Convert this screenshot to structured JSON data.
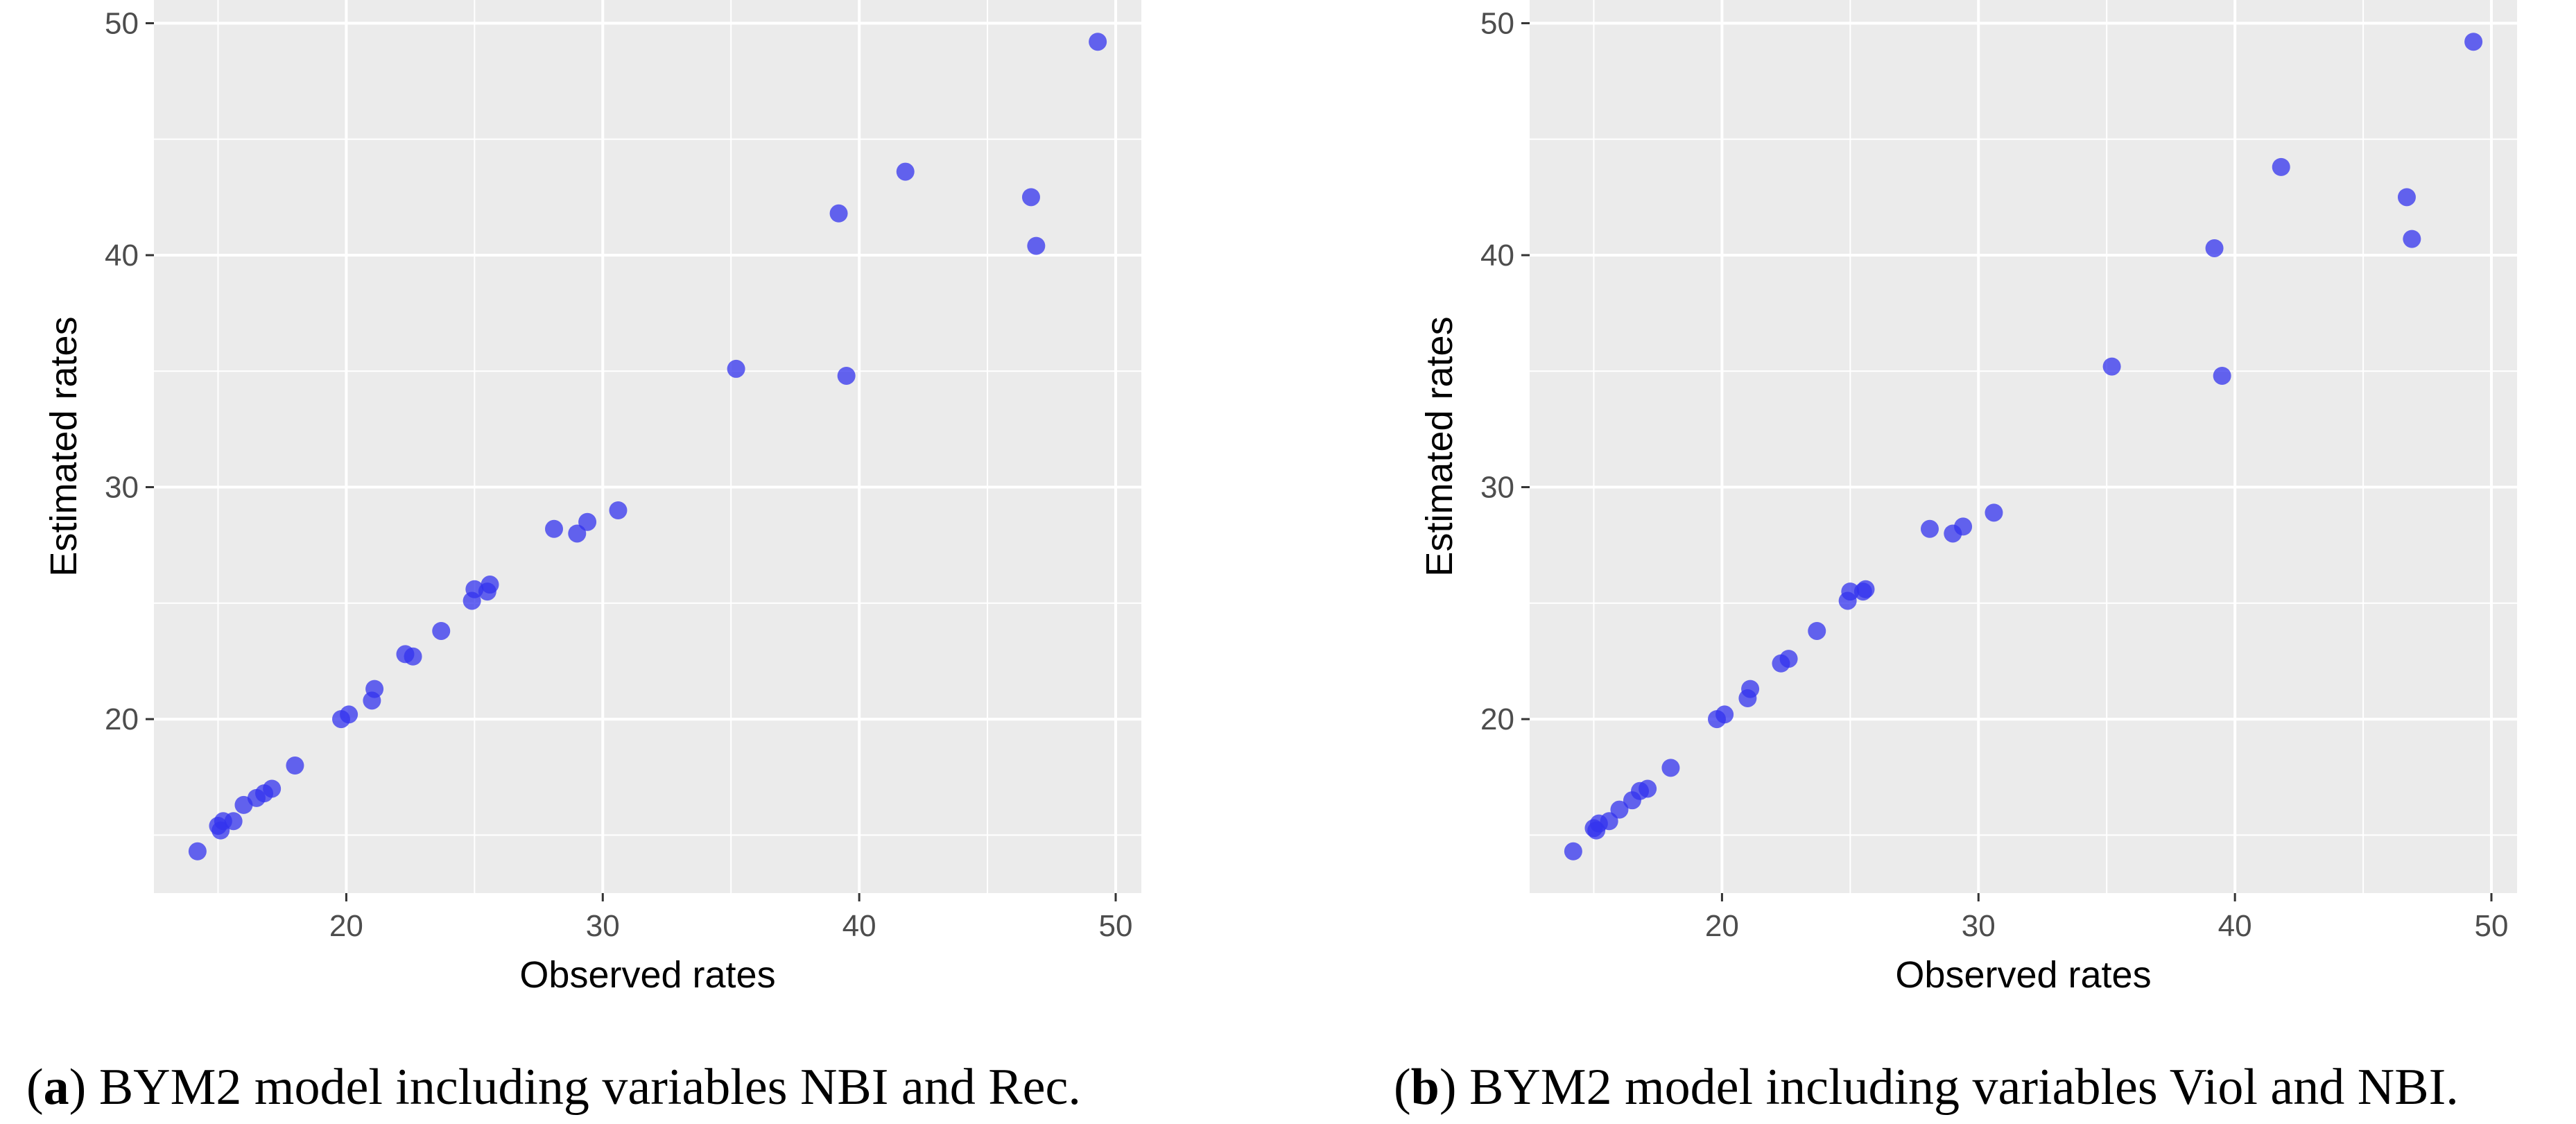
{
  "figure": {
    "panels": [
      {
        "caption": {
          "letter": "a",
          "text": " BYM2 model including variables NBI and Rec."
        }
      },
      {
        "caption": {
          "letter": "b",
          "text": " BYM2 model including variables Viol and NBI."
        }
      }
    ]
  },
  "chart_data": [
    {
      "type": "scatter",
      "title": "",
      "xlabel": "Observed rates",
      "ylabel": "Estimated rates",
      "xlim": [
        12.5,
        51.0
      ],
      "ylim": [
        12.5,
        51.0
      ],
      "xticks": [
        20,
        30,
        40,
        50
      ],
      "yticks": [
        20,
        30,
        40,
        50
      ],
      "grid": true,
      "point_color": "#3333ee",
      "series": [
        {
          "name": "NBI and Rec.",
          "points": [
            [
              14.2,
              14.3
            ],
            [
              15.0,
              15.4
            ],
            [
              15.2,
              15.6
            ],
            [
              15.1,
              15.2
            ],
            [
              15.6,
              15.6
            ],
            [
              16.0,
              16.3
            ],
            [
              16.5,
              16.6
            ],
            [
              16.8,
              16.8
            ],
            [
              17.1,
              17.0
            ],
            [
              18.0,
              18.0
            ],
            [
              19.8,
              20.0
            ],
            [
              20.1,
              20.2
            ],
            [
              21.0,
              20.8
            ],
            [
              21.1,
              21.3
            ],
            [
              22.3,
              22.8
            ],
            [
              22.6,
              22.7
            ],
            [
              23.7,
              23.8
            ],
            [
              24.9,
              25.1
            ],
            [
              25.0,
              25.6
            ],
            [
              25.5,
              25.5
            ],
            [
              25.6,
              25.8
            ],
            [
              28.1,
              28.2
            ],
            [
              29.0,
              28.0
            ],
            [
              29.4,
              28.5
            ],
            [
              30.6,
              29.0
            ],
            [
              35.2,
              35.1
            ],
            [
              39.2,
              41.8
            ],
            [
              39.5,
              34.8
            ],
            [
              41.8,
              43.6
            ],
            [
              46.7,
              42.5
            ],
            [
              46.9,
              40.4
            ],
            [
              49.3,
              49.2
            ]
          ]
        }
      ]
    },
    {
      "type": "scatter",
      "title": "",
      "xlabel": "Observed rates",
      "ylabel": "Estimated rates",
      "xlim": [
        12.5,
        51.0
      ],
      "ylim": [
        12.5,
        51.0
      ],
      "xticks": [
        20,
        30,
        40,
        50
      ],
      "yticks": [
        20,
        30,
        40,
        50
      ],
      "grid": true,
      "point_color": "#3333ee",
      "series": [
        {
          "name": "Viol and NBI.",
          "points": [
            [
              14.2,
              14.3
            ],
            [
              15.0,
              15.3
            ],
            [
              15.2,
              15.5
            ],
            [
              15.1,
              15.2
            ],
            [
              15.6,
              15.6
            ],
            [
              16.0,
              16.1
            ],
            [
              16.5,
              16.5
            ],
            [
              16.8,
              16.9
            ],
            [
              17.1,
              17.0
            ],
            [
              18.0,
              17.9
            ],
            [
              19.8,
              20.0
            ],
            [
              20.1,
              20.2
            ],
            [
              21.0,
              20.9
            ],
            [
              21.1,
              21.3
            ],
            [
              22.3,
              22.4
            ],
            [
              22.6,
              22.6
            ],
            [
              23.7,
              23.8
            ],
            [
              24.9,
              25.1
            ],
            [
              25.0,
              25.5
            ],
            [
              25.5,
              25.5
            ],
            [
              25.6,
              25.6
            ],
            [
              28.1,
              28.2
            ],
            [
              29.0,
              28.0
            ],
            [
              29.4,
              28.3
            ],
            [
              30.6,
              28.9
            ],
            [
              35.2,
              35.2
            ],
            [
              39.2,
              40.3
            ],
            [
              39.5,
              34.8
            ],
            [
              41.8,
              43.8
            ],
            [
              46.7,
              42.5
            ],
            [
              46.9,
              40.7
            ],
            [
              49.3,
              49.2
            ]
          ]
        }
      ]
    }
  ]
}
